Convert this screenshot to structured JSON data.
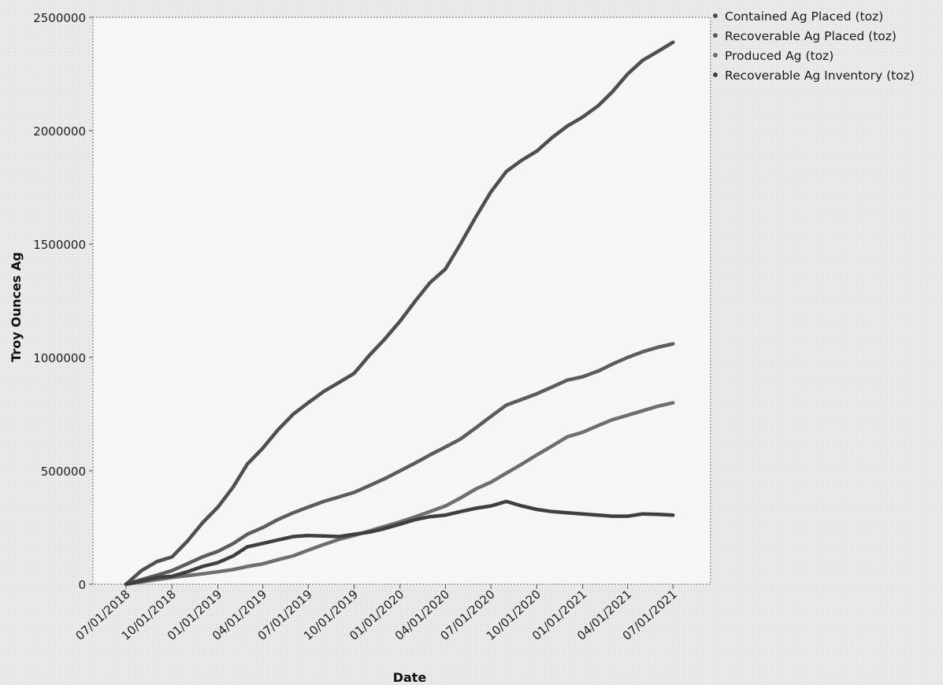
{
  "chart_data": {
    "type": "line",
    "xlabel": "Date",
    "ylabel": "Troy Ounces Ag",
    "x_axis_type": "date",
    "xlim": [
      "2018-07-01",
      "2021-07-10"
    ],
    "ylim": [
      0,
      2500000
    ],
    "x_ticks": [
      "2018-07-01",
      "2018-10-01",
      "2019-01-01",
      "2019-04-01",
      "2019-07-01",
      "2019-10-01",
      "2020-01-01",
      "2020-04-01",
      "2020-07-01",
      "2020-10-01",
      "2021-01-01",
      "2021-04-01",
      "2021-07-01"
    ],
    "x_tick_labels": [
      "07/01/2018",
      "10/01/2018",
      "01/01/2019",
      "04/01/2019",
      "07/01/2019",
      "10/01/2019",
      "01/01/2020",
      "04/01/2020",
      "07/01/2020",
      "10/01/2020",
      "01/01/2021",
      "04/01/2021",
      "07/01/2021"
    ],
    "y_ticks": [
      0,
      500000,
      1000000,
      1500000,
      2000000,
      2500000
    ],
    "y_tick_labels": [
      "0",
      "500000",
      "1000000",
      "1500000",
      "2000000",
      "2500000"
    ],
    "grid": false,
    "legend_position": "top-right-outside",
    "series": [
      {
        "name": "Contained Ag Placed (toz)",
        "color": "#4f4f4f",
        "x": [
          "2018-07-01",
          "2018-08-01",
          "2018-09-01",
          "2018-10-01",
          "2018-11-01",
          "2018-12-01",
          "2019-01-01",
          "2019-02-01",
          "2019-03-01",
          "2019-04-01",
          "2019-05-01",
          "2019-06-01",
          "2019-07-01",
          "2019-08-01",
          "2019-09-01",
          "2019-10-01",
          "2019-11-01",
          "2019-12-01",
          "2020-01-01",
          "2020-02-01",
          "2020-03-01",
          "2020-04-01",
          "2020-05-01",
          "2020-06-01",
          "2020-07-01",
          "2020-08-01",
          "2020-09-01",
          "2020-10-01",
          "2020-11-01",
          "2020-12-01",
          "2021-01-01",
          "2021-02-01",
          "2021-03-01",
          "2021-04-01",
          "2021-05-01",
          "2021-06-01",
          "2021-07-01"
        ],
        "values": [
          0,
          60000,
          100000,
          120000,
          190000,
          270000,
          340000,
          430000,
          530000,
          600000,
          680000,
          750000,
          800000,
          850000,
          890000,
          930000,
          1010000,
          1080000,
          1160000,
          1250000,
          1330000,
          1390000,
          1500000,
          1620000,
          1730000,
          1820000,
          1870000,
          1910000,
          1970000,
          2020000,
          2060000,
          2110000,
          2170000,
          2250000,
          2310000,
          2350000,
          2390000
        ]
      },
      {
        "name": "Recoverable Ag Placed (toz)",
        "color": "#5c5c5c",
        "x": [
          "2018-07-01",
          "2018-08-01",
          "2018-09-01",
          "2018-10-01",
          "2018-11-01",
          "2018-12-01",
          "2019-01-01",
          "2019-02-01",
          "2019-03-01",
          "2019-04-01",
          "2019-05-01",
          "2019-06-01",
          "2019-07-01",
          "2019-08-01",
          "2019-09-01",
          "2019-10-01",
          "2019-11-01",
          "2019-12-01",
          "2020-01-01",
          "2020-02-01",
          "2020-03-01",
          "2020-04-01",
          "2020-05-01",
          "2020-06-01",
          "2020-07-01",
          "2020-08-01",
          "2020-09-01",
          "2020-10-01",
          "2020-11-01",
          "2020-12-01",
          "2021-01-01",
          "2021-02-01",
          "2021-03-01",
          "2021-04-01",
          "2021-05-01",
          "2021-06-01",
          "2021-07-01"
        ],
        "values": [
          0,
          20000,
          40000,
          60000,
          90000,
          120000,
          145000,
          180000,
          220000,
          250000,
          285000,
          315000,
          340000,
          365000,
          385000,
          405000,
          435000,
          465000,
          500000,
          535000,
          570000,
          605000,
          640000,
          690000,
          740000,
          790000,
          815000,
          840000,
          870000,
          900000,
          915000,
          940000,
          970000,
          1000000,
          1025000,
          1045000,
          1060000
        ]
      },
      {
        "name": "Produced Ag (toz)",
        "color": "#6e6e6e",
        "x": [
          "2018-07-01",
          "2018-08-01",
          "2018-09-01",
          "2018-10-01",
          "2018-11-01",
          "2018-12-01",
          "2019-01-01",
          "2019-02-01",
          "2019-03-01",
          "2019-04-01",
          "2019-05-01",
          "2019-06-01",
          "2019-07-01",
          "2019-08-01",
          "2019-09-01",
          "2019-10-01",
          "2019-11-01",
          "2019-12-01",
          "2020-01-01",
          "2020-02-01",
          "2020-03-01",
          "2020-04-01",
          "2020-05-01",
          "2020-06-01",
          "2020-07-01",
          "2020-08-01",
          "2020-09-01",
          "2020-10-01",
          "2020-11-01",
          "2020-12-01",
          "2021-01-01",
          "2021-02-01",
          "2021-03-01",
          "2021-04-01",
          "2021-05-01",
          "2021-06-01",
          "2021-07-01"
        ],
        "values": [
          0,
          10000,
          20000,
          30000,
          38000,
          46000,
          55000,
          65000,
          78000,
          90000,
          108000,
          125000,
          150000,
          175000,
          198000,
          215000,
          235000,
          255000,
          275000,
          298000,
          320000,
          345000,
          380000,
          420000,
          450000,
          490000,
          530000,
          570000,
          610000,
          650000,
          670000,
          700000,
          725000,
          745000,
          765000,
          785000,
          800000
        ]
      },
      {
        "name": "Recoverable Ag Inventory (toz)",
        "color": "#3f3f3f",
        "x": [
          "2018-07-01",
          "2018-08-01",
          "2018-09-01",
          "2018-10-01",
          "2018-11-01",
          "2018-12-01",
          "2019-01-01",
          "2019-02-01",
          "2019-03-01",
          "2019-04-01",
          "2019-05-01",
          "2019-06-01",
          "2019-07-01",
          "2019-08-01",
          "2019-09-01",
          "2019-10-01",
          "2019-11-01",
          "2019-12-01",
          "2020-01-01",
          "2020-02-01",
          "2020-03-01",
          "2020-04-01",
          "2020-05-01",
          "2020-06-01",
          "2020-07-01",
          "2020-08-01",
          "2020-09-01",
          "2020-10-01",
          "2020-11-01",
          "2020-12-01",
          "2021-01-01",
          "2021-02-01",
          "2021-03-01",
          "2021-04-01",
          "2021-05-01",
          "2021-06-01",
          "2021-07-01"
        ],
        "values": [
          0,
          15000,
          30000,
          35000,
          55000,
          78000,
          95000,
          125000,
          165000,
          180000,
          195000,
          210000,
          215000,
          213000,
          210000,
          220000,
          230000,
          245000,
          265000,
          285000,
          298000,
          305000,
          320000,
          335000,
          345000,
          365000,
          345000,
          330000,
          320000,
          315000,
          310000,
          305000,
          300000,
          300000,
          310000,
          308000,
          305000
        ]
      }
    ]
  }
}
